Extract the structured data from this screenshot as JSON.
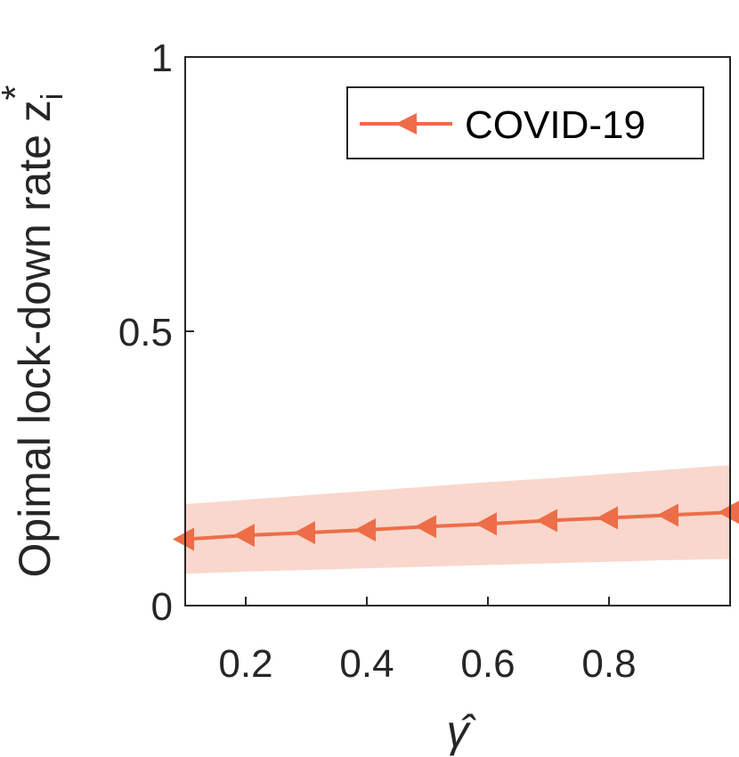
{
  "chart_data": {
    "type": "line",
    "title": "",
    "xlabel": "γ̂",
    "ylabel": "Opimal lock-down rate z",
    "ylabel_subscript": "i",
    "ylabel_superscript": "*",
    "xlim": [
      0.1,
      1.0
    ],
    "ylim": [
      0,
      1
    ],
    "xticks": [
      0.2,
      0.4,
      0.6,
      0.8
    ],
    "xtick_labels": [
      "0.2",
      "0.4",
      "0.6",
      "0.8"
    ],
    "yticks": [
      0,
      0.5,
      1
    ],
    "ytick_labels": [
      "0",
      "0.5",
      "1"
    ],
    "grid": false,
    "legend_position": "top-right",
    "series": [
      {
        "name": "COVID-19",
        "color": "#ED6D48",
        "band_color": "#F9D7CC",
        "marker": "triangle-left",
        "x": [
          0.1,
          0.2,
          0.3,
          0.4,
          0.5,
          0.6,
          0.7,
          0.8,
          0.9,
          1.0
        ],
        "values": [
          0.121,
          0.128,
          0.133,
          0.138,
          0.144,
          0.149,
          0.155,
          0.16,
          0.165,
          0.17
        ],
        "lower": [
          0.058,
          0.062,
          0.065,
          0.068,
          0.071,
          0.074,
          0.077,
          0.08,
          0.083,
          0.085
        ],
        "upper": [
          0.185,
          0.193,
          0.201,
          0.209,
          0.217,
          0.225,
          0.232,
          0.24,
          0.248,
          0.256
        ]
      }
    ]
  }
}
